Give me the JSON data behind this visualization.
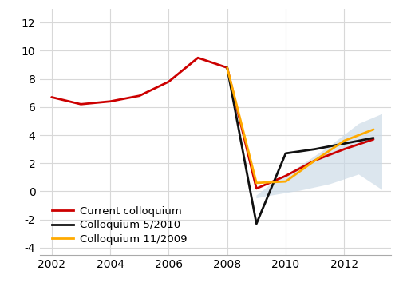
{
  "title": "",
  "xlabel": "",
  "ylabel": "",
  "xlim": [
    2001.6,
    2013.6
  ],
  "ylim": [
    -4.5,
    13
  ],
  "yticks": [
    -4,
    -2,
    0,
    2,
    4,
    6,
    8,
    10,
    12
  ],
  "xticks": [
    2002,
    2004,
    2006,
    2008,
    2010,
    2012
  ],
  "background_color": "#ffffff",
  "red_x": [
    2002,
    2003,
    2004,
    2005,
    2006,
    2007,
    2008,
    2009,
    2010,
    2011,
    2012,
    2013
  ],
  "red_y": [
    6.7,
    6.2,
    6.4,
    6.8,
    7.8,
    9.5,
    8.8,
    0.2,
    1.1,
    2.2,
    3.0,
    3.7
  ],
  "black_x": [
    2008,
    2009,
    2010,
    2011,
    2012,
    2013
  ],
  "black_y": [
    8.8,
    -2.3,
    2.7,
    3.0,
    3.4,
    3.8
  ],
  "yellow_x": [
    2008,
    2009,
    2010,
    2011,
    2012,
    2013
  ],
  "yellow_y": [
    8.8,
    0.6,
    0.7,
    2.2,
    3.6,
    4.4
  ],
  "shade_x_pts": [
    2009.0,
    2009.5,
    2010.5,
    2011.5,
    2012.5,
    2013.3
  ],
  "shade_y_upper": [
    -0.3,
    0.5,
    1.8,
    3.2,
    4.8,
    5.5
  ],
  "shade_y_lower": [
    -0.5,
    -0.3,
    0.05,
    0.5,
    1.2,
    0.1
  ],
  "red_color": "#cc0000",
  "black_color": "#111111",
  "yellow_color": "#ffaa00",
  "shade_color": "#cad9e6",
  "shade_alpha": 0.65,
  "legend_labels": [
    "Current colloquium",
    "Colloquium 5/2010",
    "Colloquium 11/2009"
  ],
  "legend_colors": [
    "#cc0000",
    "#111111",
    "#ffaa00"
  ],
  "grid_color": "#d8d8d8",
  "spine_color": "#aaaaaa"
}
